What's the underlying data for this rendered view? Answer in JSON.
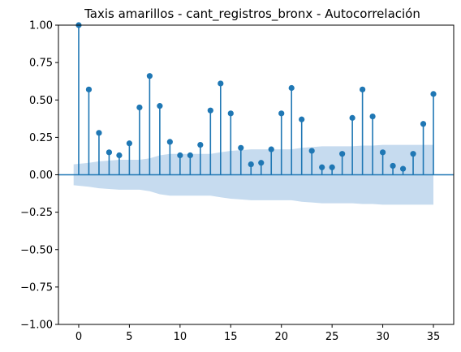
{
  "chart_data": {
    "type": "stem",
    "title": "Taxis amarillos - cant_registros_bronx - Autocorrelación",
    "xlabel": "",
    "ylabel": "",
    "xlim": [
      -2,
      37
    ],
    "ylim": [
      -1.0,
      1.0
    ],
    "x_ticks": [
      0,
      5,
      10,
      15,
      20,
      25,
      30,
      35
    ],
    "y_ticks": [
      -1.0,
      -0.75,
      -0.5,
      -0.25,
      0.0,
      0.25,
      0.5,
      0.75,
      1.0
    ],
    "x_tick_labels": [
      "0",
      "5",
      "10",
      "15",
      "20",
      "25",
      "30",
      "35"
    ],
    "y_tick_labels": [
      "−1.00",
      "−0.75",
      "−0.50",
      "−0.25",
      "0.00",
      "0.25",
      "0.50",
      "0.75",
      "1.00"
    ],
    "grid": false,
    "series": [
      {
        "color": "#1f77b4",
        "lags": [
          0,
          1,
          2,
          3,
          4,
          5,
          6,
          7,
          8,
          9,
          10,
          11,
          12,
          13,
          14,
          15,
          16,
          17,
          18,
          19,
          20,
          21,
          22,
          23,
          24,
          25,
          26,
          27,
          28,
          29,
          30,
          31,
          32,
          33,
          34,
          35
        ],
        "values": [
          1.0,
          0.57,
          0.28,
          0.15,
          0.13,
          0.21,
          0.45,
          0.66,
          0.46,
          0.22,
          0.13,
          0.13,
          0.2,
          0.43,
          0.61,
          0.41,
          0.18,
          0.07,
          0.08,
          0.17,
          0.41,
          0.58,
          0.37,
          0.16,
          0.05,
          0.05,
          0.14,
          0.38,
          0.57,
          0.39,
          0.15,
          0.06,
          0.04,
          0.14,
          0.34,
          0.54
        ]
      }
    ],
    "confidence_band": {
      "color": "#c6dbef",
      "lags": [
        0,
        1,
        2,
        3,
        4,
        5,
        6,
        7,
        8,
        9,
        10,
        11,
        12,
        13,
        14,
        15,
        16,
        17,
        18,
        19,
        20,
        21,
        22,
        23,
        24,
        25,
        26,
        27,
        28,
        29,
        30,
        31,
        32,
        33,
        34,
        35
      ],
      "upper": [
        0.07,
        0.08,
        0.09,
        0.095,
        0.1,
        0.1,
        0.1,
        0.11,
        0.13,
        0.14,
        0.14,
        0.14,
        0.14,
        0.14,
        0.15,
        0.16,
        0.165,
        0.17,
        0.17,
        0.17,
        0.17,
        0.17,
        0.18,
        0.185,
        0.19,
        0.19,
        0.19,
        0.19,
        0.195,
        0.195,
        0.2,
        0.2,
        0.2,
        0.2,
        0.2,
        0.2
      ]
    }
  }
}
